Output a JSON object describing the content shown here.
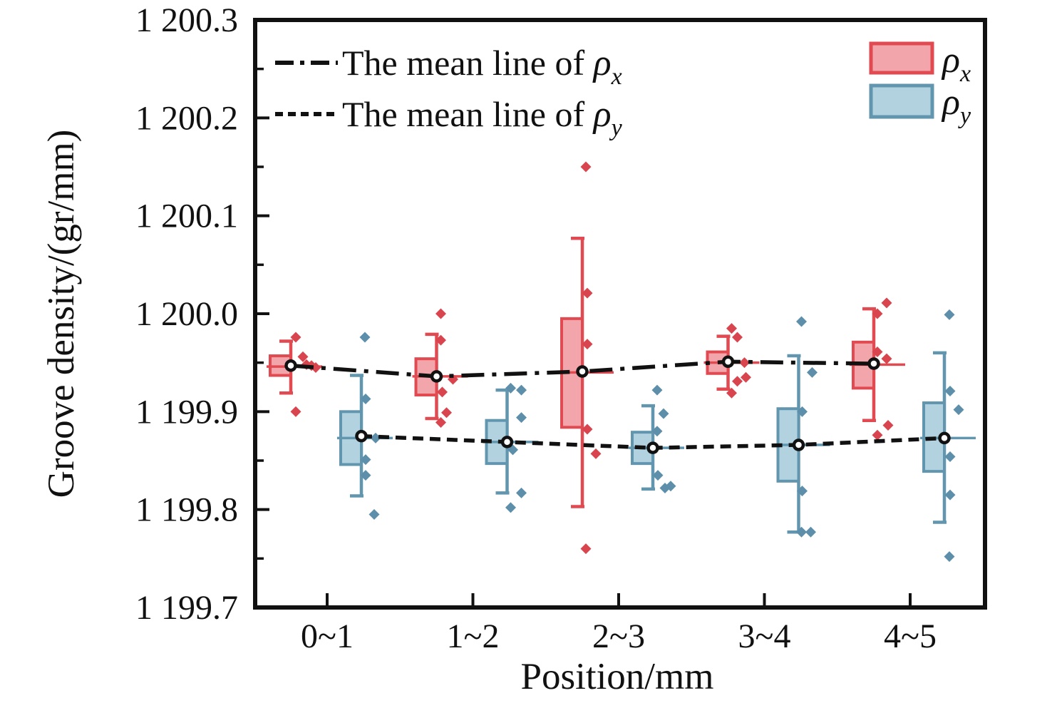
{
  "figure": {
    "background": "#ffffff",
    "frame_color": "#111111"
  },
  "y_axis": {
    "title": "Groove density/(gr/mm)",
    "tick_labels": [
      "1 200.3",
      "1 200.2",
      "1 200.1",
      "1 200.0",
      "1 199.9",
      "1 199.8",
      "1 199.7"
    ],
    "tick_values": [
      1200.3,
      1200.2,
      1200.1,
      1200.0,
      1199.9,
      1199.8,
      1199.7
    ],
    "minor_tick_values": [
      1200.25,
      1200.15,
      1200.05,
      1199.95,
      1199.85,
      1199.75
    ],
    "range_min": 1199.7,
    "range_max": 1200.3
  },
  "x_axis": {
    "title": "Position/mm",
    "categories": [
      "0~1",
      "1~2",
      "2~3",
      "3~4",
      "4~5"
    ]
  },
  "legend_lines": [
    {
      "label": "The mean line of ",
      "symbol": "ρ",
      "subscript": "x",
      "line_style": "dash-dot"
    },
    {
      "label": "The mean line of ",
      "symbol": "ρ",
      "subscript": "y",
      "line_style": "dashed"
    }
  ],
  "legend_boxes": [
    {
      "symbol": "ρ",
      "subscript": "x",
      "fill": "#f2a6ab",
      "border": "#e04a50"
    },
    {
      "symbol": "ρ",
      "subscript": "y",
      "fill": "#b2d2e0",
      "border": "#6296af"
    }
  ],
  "chart_data": {
    "type": "box",
    "title": "",
    "xlabel": "Position/mm",
    "ylabel": "Groove density/(gr/mm)",
    "ylim": [
      1199.7,
      1200.3
    ],
    "grid": false,
    "legend_position": "top",
    "categories": [
      "0~1",
      "1~2",
      "2~3",
      "3~4",
      "4~5"
    ],
    "series": [
      {
        "name": "ρx",
        "fill": "#f2a6ab",
        "stroke": "#e04a50",
        "point_color": "#d9454e",
        "mean_line_style": "dash-dot",
        "mean_values": [
          1199.947,
          1199.936,
          1199.941,
          1199.951,
          1199.949
        ],
        "groups": [
          {
            "whisker_low": 1199.919,
            "q1": 1199.937,
            "median": 1199.946,
            "mean": 1199.947,
            "q3": 1199.957,
            "whisker_high": 1199.972,
            "points_dx_value": [
              [
                7,
                1199.976
              ],
              [
                17,
                1199.956
              ],
              [
                22,
                1199.948
              ],
              [
                29,
                1199.947
              ],
              [
                35,
                1199.945
              ],
              [
                7,
                1199.9
              ]
            ]
          },
          {
            "whisker_low": 1199.893,
            "q1": 1199.917,
            "median": 1199.936,
            "mean": 1199.936,
            "q3": 1199.954,
            "whisker_high": 1199.979,
            "points_dx_value": [
              [
                6,
                1200.0
              ],
              [
                6,
                1199.973
              ],
              [
                23,
                1199.933
              ],
              [
                8,
                1199.92
              ],
              [
                14,
                1199.899
              ],
              [
                6,
                1199.889
              ]
            ]
          },
          {
            "whisker_low": 1199.803,
            "q1": 1199.884,
            "median": 1199.94,
            "mean": 1199.941,
            "q3": 1199.995,
            "whisker_high": 1200.077,
            "points_dx_value": [
              [
                5,
                1200.15
              ],
              [
                7,
                1200.021
              ],
              [
                7,
                1199.969
              ],
              [
                7,
                1199.882
              ],
              [
                19,
                1199.857
              ],
              [
                5,
                1199.76
              ]
            ]
          },
          {
            "whisker_low": 1199.923,
            "q1": 1199.939,
            "median": 1199.95,
            "mean": 1199.951,
            "q3": 1199.961,
            "whisker_high": 1199.977,
            "points_dx_value": [
              [
                5,
                1199.985
              ],
              [
                13,
                1199.976
              ],
              [
                23,
                1199.95
              ],
              [
                25,
                1199.935
              ],
              [
                13,
                1199.931
              ],
              [
                5,
                1199.919
              ]
            ]
          },
          {
            "whisker_low": 1199.891,
            "q1": 1199.924,
            "median": 1199.948,
            "mean": 1199.949,
            "q3": 1199.971,
            "whisker_high": 1200.005,
            "points_dx_value": [
              [
                18,
                1200.011
              ],
              [
                5,
                1200.0
              ],
              [
                5,
                1199.961
              ],
              [
                18,
                1199.954
              ],
              [
                20,
                1199.886
              ],
              [
                5,
                1199.876
              ]
            ]
          }
        ]
      },
      {
        "name": "ρy",
        "fill": "#b2d2e0",
        "stroke": "#6296af",
        "point_color": "#5d8fab",
        "mean_line_style": "dashed",
        "mean_values": [
          1199.875,
          1199.869,
          1199.863,
          1199.866,
          1199.873
        ],
        "groups": [
          {
            "whisker_low": 1199.814,
            "q1": 1199.846,
            "median": 1199.873,
            "mean": 1199.875,
            "q3": 1199.9,
            "whisker_high": 1199.937,
            "points_dx_value": [
              [
                5,
                1199.976
              ],
              [
                6,
                1199.913
              ],
              [
                20,
                1199.873
              ],
              [
                6,
                1199.851
              ],
              [
                6,
                1199.835
              ],
              [
                18,
                1199.795
              ]
            ]
          },
          {
            "whisker_low": 1199.817,
            "q1": 1199.847,
            "median": 1199.869,
            "mean": 1199.869,
            "q3": 1199.891,
            "whisker_high": 1199.922,
            "points_dx_value": [
              [
                5,
                1199.924
              ],
              [
                20,
                1199.922
              ],
              [
                20,
                1199.894
              ],
              [
                8,
                1199.861
              ],
              [
                20,
                1199.817
              ],
              [
                5,
                1199.802
              ]
            ]
          },
          {
            "whisker_low": 1199.821,
            "q1": 1199.847,
            "median": 1199.863,
            "mean": 1199.864,
            "q3": 1199.879,
            "whisker_high": 1199.906,
            "points_dx_value": [
              [
                6,
                1199.922
              ],
              [
                15,
                1199.898
              ],
              [
                6,
                1199.88
              ],
              [
                7,
                1199.835
              ],
              [
                17,
                1199.822
              ],
              [
                25,
                1199.824
              ]
            ]
          },
          {
            "whisker_low": 1199.777,
            "q1": 1199.829,
            "median": 1199.866,
            "mean": 1199.867,
            "q3": 1199.903,
            "whisker_high": 1199.957,
            "points_dx_value": [
              [
                4,
                1199.992
              ],
              [
                19,
                1199.94
              ],
              [
                5,
                1199.9
              ],
              [
                5,
                1199.819
              ],
              [
                4,
                1199.777
              ],
              [
                17,
                1199.777
              ]
            ]
          },
          {
            "whisker_low": 1199.787,
            "q1": 1199.839,
            "median": 1199.873,
            "mean": 1199.874,
            "q3": 1199.909,
            "whisker_high": 1199.96,
            "points_dx_value": [
              [
                7,
                1199.999
              ],
              [
                8,
                1199.921
              ],
              [
                20,
                1199.902
              ],
              [
                8,
                1199.854
              ],
              [
                8,
                1199.815
              ],
              [
                7,
                1199.752
              ]
            ]
          }
        ]
      }
    ]
  }
}
